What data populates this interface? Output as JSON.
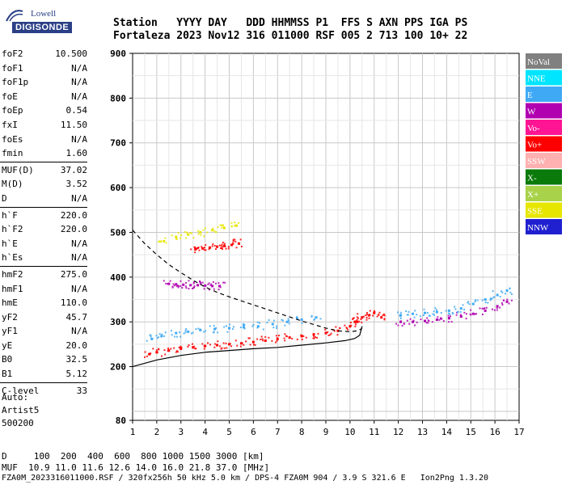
{
  "logo": {
    "brand": "Lowell",
    "product": "DIGISONDE"
  },
  "header": {
    "line1": "Station   YYYY DAY   DDD HHMMSS P1  FFS S AXN PPS IGA PS",
    "line2": "Fortaleza 2023 Nov12 316 011000 RSF 005 2 713 100 10+ 22"
  },
  "params": {
    "groups": [
      [
        {
          "name": "foF2",
          "value": "10.500"
        },
        {
          "name": "foF1",
          "value": "N/A"
        },
        {
          "name": "foF1p",
          "value": "N/A"
        },
        {
          "name": "foE",
          "value": "N/A"
        },
        {
          "name": "foEp",
          "value": "0.54"
        },
        {
          "name": "fxI",
          "value": "11.50"
        },
        {
          "name": "foEs",
          "value": "N/A"
        },
        {
          "name": "fmin",
          "value": "1.60"
        }
      ],
      [
        {
          "name": "MUF(D)",
          "value": "37.02"
        },
        {
          "name": "M(D)",
          "value": "3.52"
        },
        {
          "name": "D",
          "value": "N/A"
        }
      ],
      [
        {
          "name": "h`F",
          "value": "220.0"
        },
        {
          "name": "h`F2",
          "value": "220.0"
        },
        {
          "name": "h`E",
          "value": "N/A"
        },
        {
          "name": "h`Es",
          "value": "N/A"
        }
      ],
      [
        {
          "name": "hmF2",
          "value": "275.0"
        },
        {
          "name": "hmF1",
          "value": "N/A"
        },
        {
          "name": "hmE",
          "value": "110.0"
        },
        {
          "name": "yF2",
          "value": "45.7"
        },
        {
          "name": "yF1",
          "value": "N/A"
        },
        {
          "name": "yE",
          "value": "20.0"
        },
        {
          "name": "B0",
          "value": "32.5"
        },
        {
          "name": "B1",
          "value": "5.12"
        }
      ],
      [
        {
          "name": "C-level",
          "value": "33"
        }
      ]
    ]
  },
  "auto": {
    "label": "Auto:",
    "software": "Artist5",
    "version": "500200"
  },
  "footer": {
    "d_row": "D     100  200  400  600  800 1000 1500 3000 [km]",
    "muf_row": "MUF  10.9 11.0 11.6 12.6 14.0 16.0 21.8 37.0 [MHz]",
    "file_line": "FZA0M_2023316011000.RSF / 320fx256h 50 kHz 5.0 km / DPS-4 FZA0M 904 / 3.9 S 321.6 E   Ion2Png 1.3.20"
  },
  "chart_data": {
    "type": "scatter",
    "title": "",
    "xlabel": "",
    "ylabel": "",
    "xlim": [
      1,
      17
    ],
    "ylim": [
      80,
      900
    ],
    "x_ticks": [
      "1",
      "2",
      "3",
      "4",
      "5",
      "6",
      "7",
      "8",
      "9",
      "10",
      "11",
      "12",
      "13",
      "14",
      "15",
      "16",
      "17"
    ],
    "y_ticks": [
      "80",
      "200",
      "300",
      "400",
      "500",
      "600",
      "700",
      "800",
      "900"
    ],
    "grid": true,
    "legend_position": "right",
    "legend": [
      {
        "label": "NoVal",
        "color": "#808080"
      },
      {
        "label": "NNE",
        "color": "#00e5ff"
      },
      {
        "label": "E",
        "color": "#3fa9f5"
      },
      {
        "label": "W",
        "color": "#b000b0"
      },
      {
        "label": "Vo-",
        "color": "#ff1493"
      },
      {
        "label": "Vo+",
        "color": "#ff0000"
      },
      {
        "label": "SSW",
        "color": "#ffb0b0"
      },
      {
        "label": "X-",
        "color": "#0a7a0a"
      },
      {
        "label": "X+",
        "color": "#a8d24a"
      },
      {
        "label": "SSE",
        "color": "#e6e600"
      },
      {
        "label": "NNW",
        "color": "#2020d0"
      }
    ],
    "series": [
      {
        "color": "#ff0000",
        "x": [
          1.7,
          2.0,
          2.5,
          3.0,
          3.5,
          4.0,
          4.5,
          5.0,
          5.5,
          6.0,
          6.5,
          7.0,
          7.5,
          8.0,
          8.5,
          9.0,
          9.5,
          10.0,
          10.3
        ],
        "y": [
          228,
          232,
          236,
          240,
          243,
          246,
          248,
          250,
          252,
          255,
          258,
          262,
          265,
          268,
          272,
          275,
          280,
          290,
          300
        ]
      },
      {
        "color": "#3fa9f5",
        "x": [
          1.8,
          2.2,
          2.8,
          3.3,
          3.8,
          4.4,
          5.0,
          5.6,
          6.2,
          6.8,
          7.4,
          8.0,
          8.6
        ],
        "y": [
          262,
          268,
          275,
          278,
          282,
          284,
          286,
          288,
          290,
          295,
          300,
          305,
          310
        ]
      },
      {
        "color": "#ff0000",
        "x": [
          3.6,
          3.9,
          4.2,
          4.5,
          4.8,
          5.1,
          5.4
        ],
        "y": [
          462,
          464,
          466,
          468,
          470,
          472,
          475
        ]
      },
      {
        "color": "#e6e600",
        "x": [
          2.3,
          2.8,
          3.3,
          3.8,
          4.3,
          4.8,
          5.3
        ],
        "y": [
          480,
          490,
          495,
          500,
          505,
          510,
          515
        ]
      },
      {
        "color": "#b000b0",
        "x": [
          2.5,
          2.8,
          3.1,
          3.4,
          3.7,
          4.0,
          4.3,
          4.6
        ],
        "y": [
          385,
          384,
          383,
          382,
          382,
          381,
          380,
          380
        ]
      },
      {
        "color": "#b000b0",
        "x": [
          12.1,
          12.6,
          13.1,
          13.6,
          14.1,
          14.6,
          15.1,
          15.6,
          16.1,
          16.5
        ],
        "y": [
          300,
          300,
          302,
          305,
          308,
          312,
          318,
          325,
          335,
          345
        ]
      },
      {
        "color": "#3fa9f5",
        "x": [
          12.1,
          12.6,
          13.1,
          13.6,
          14.1,
          14.6,
          15.1,
          15.6,
          16.1,
          16.5
        ],
        "y": [
          315,
          318,
          320,
          322,
          325,
          330,
          340,
          350,
          360,
          370
        ]
      },
      {
        "color": "#ff0000",
        "x": [
          10.2,
          10.5,
          10.8,
          11.0,
          11.3
        ],
        "y": [
          300,
          310,
          315,
          320,
          310
        ]
      }
    ],
    "lines": [
      {
        "style": "dashed",
        "x": [
          1.0,
          1.5,
          2.0,
          2.5,
          3.0,
          3.5,
          4.0,
          4.5,
          5.0,
          5.5,
          6.0,
          6.5,
          7.0,
          7.5,
          8.0,
          8.5,
          9.0,
          9.5,
          10.0,
          10.3,
          10.5
        ],
        "y": [
          505,
          475,
          450,
          428,
          410,
          393,
          378,
          366,
          356,
          347,
          338,
          329,
          320,
          311,
          302,
          294,
          286,
          280,
          278,
          280,
          285
        ]
      },
      {
        "style": "solid",
        "x": [
          1.0,
          2.0,
          3.0,
          4.0,
          5.0,
          6.0,
          7.0,
          8.0,
          9.0,
          9.8,
          10.2,
          10.4,
          10.5
        ],
        "y": [
          200,
          215,
          225,
          232,
          236,
          240,
          243,
          248,
          253,
          258,
          263,
          270,
          290
        ]
      }
    ]
  }
}
